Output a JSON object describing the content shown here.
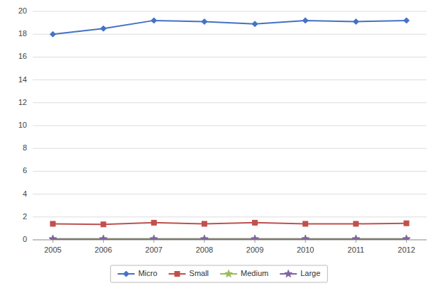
{
  "chart_data": {
    "type": "line",
    "x": [
      2005,
      2006,
      2007,
      2008,
      2009,
      2010,
      2011,
      2012
    ],
    "series": [
      {
        "name": "Micro",
        "color": "#4472C4",
        "marker": "diamond",
        "values": [
          18.0,
          18.5,
          19.2,
          19.1,
          18.9,
          19.2,
          19.1,
          19.2
        ]
      },
      {
        "name": "Small",
        "color": "#C0504D",
        "marker": "square",
        "values": [
          1.4,
          1.35,
          1.5,
          1.4,
          1.5,
          1.4,
          1.4,
          1.45
        ]
      },
      {
        "name": "Medium",
        "color": "#9BBB59",
        "marker": "star",
        "values": [
          0.1,
          0.1,
          0.1,
          0.1,
          0.1,
          0.1,
          0.1,
          0.1
        ]
      },
      {
        "name": "Large",
        "color": "#8064A2",
        "marker": "star",
        "values": [
          0.05,
          0.05,
          0.05,
          0.05,
          0.05,
          0.05,
          0.05,
          0.05
        ]
      }
    ],
    "xlim": [
      2004.6,
      2012.4
    ],
    "xticks": [
      2005,
      2006,
      2007,
      2008,
      2009,
      2010,
      2011,
      2012
    ],
    "ylim": [
      0,
      20
    ],
    "yticks": [
      0,
      2,
      4,
      6,
      8,
      10,
      12,
      14,
      16,
      18,
      20
    ],
    "grid": true,
    "legend": "bottom"
  }
}
